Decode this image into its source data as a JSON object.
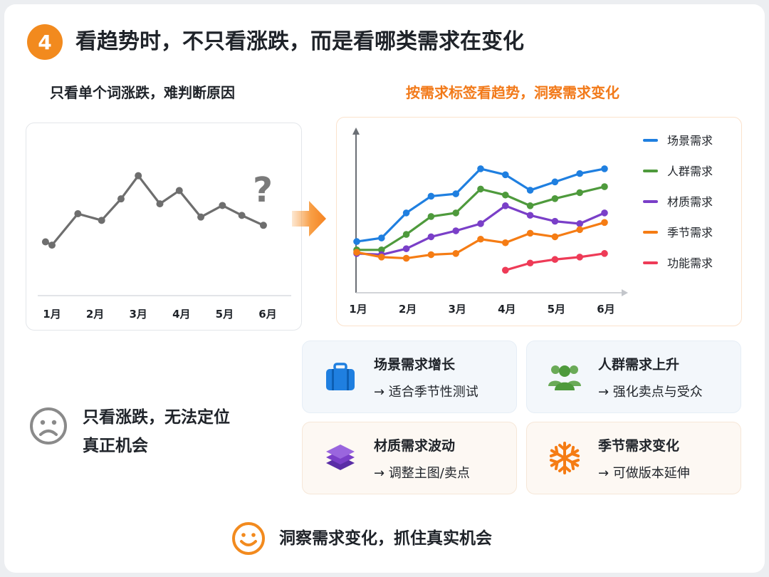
{
  "header": {
    "step_number": "4",
    "title": "看趋势时，不只看涨跌，而是看哪类需求在变化"
  },
  "left_panel": {
    "subtitle": "只看单个词涨跌，难判断原因",
    "question_mark": "?",
    "chart_data": {
      "type": "line",
      "title": "",
      "xlabel": "",
      "ylabel": "",
      "categories": [
        "1月",
        "2月",
        "3月",
        "4月",
        "5月",
        "6月"
      ],
      "series": [
        {
          "name": "",
          "color": "#6e6e6e",
          "x": [
            0.85,
            1.0,
            1.6,
            2.15,
            2.6,
            3.0,
            3.5,
            3.95,
            4.45,
            4.95,
            5.4,
            5.9
          ],
          "values": [
            36,
            34,
            53,
            49,
            62,
            76,
            59,
            67,
            51,
            58,
            52,
            46
          ]
        }
      ]
    },
    "status": {
      "line1": "只看涨跌，无法定位",
      "line2": "真正机会",
      "icon": "sad-face-icon",
      "color": "#8a8a8a"
    }
  },
  "right_panel": {
    "subtitle": "按需求标签看趋势，洞察需求变化",
    "chart_data": {
      "type": "line",
      "title": "",
      "xlabel": "",
      "ylabel": "",
      "categories": [
        "1月",
        "2月",
        "3月",
        "4月",
        "5月",
        "6月"
      ],
      "legend_position": "right",
      "series": [
        {
          "name": "场景需求",
          "color": "#1f7fe0",
          "x": [
            1,
            1.5,
            2,
            2.5,
            3,
            3.5,
            4,
            4.5,
            5,
            5.5,
            6
          ],
          "values": [
            36,
            39,
            60,
            74,
            76,
            97,
            92,
            79,
            86,
            93,
            97
          ]
        },
        {
          "name": "人群需求",
          "color": "#4e9a3c",
          "x": [
            1,
            1.5,
            2,
            2.5,
            3,
            3.5,
            4,
            4.5,
            5,
            5.5,
            6
          ],
          "values": [
            29,
            29,
            42,
            57,
            60,
            80,
            75,
            66,
            72,
            77,
            82
          ]
        },
        {
          "name": "材质需求",
          "color": "#7a3fc8",
          "x": [
            1,
            1.5,
            2,
            2.5,
            3,
            3.5,
            4,
            4.5,
            5,
            5.5,
            6
          ],
          "values": [
            26,
            25,
            30,
            40,
            45,
            51,
            66,
            58,
            53,
            51,
            60
          ]
        },
        {
          "name": "季节需求",
          "color": "#f57c14",
          "x": [
            1,
            1.5,
            2,
            2.5,
            3,
            3.5,
            4,
            4.5,
            5,
            5.5,
            6
          ],
          "values": [
            27,
            23,
            22,
            25,
            26,
            38,
            35,
            43,
            40,
            46,
            52
          ]
        },
        {
          "name": "功能需求",
          "color": "#ee3b57",
          "x": [
            4,
            4.5,
            5,
            5.5,
            6
          ],
          "values": [
            12,
            18,
            21,
            23,
            26
          ]
        }
      ]
    }
  },
  "insights": [
    {
      "title": "场景需求增长",
      "detail": "→ 适合季节性测试",
      "icon": "suitcase-icon",
      "color": "#1f7fe0"
    },
    {
      "title": "人群需求上升",
      "detail": "→ 强化卖点与受众",
      "icon": "people-group-icon",
      "color": "#4e9a3c"
    },
    {
      "title": "材质需求波动",
      "detail": "→ 调整主图/卖点",
      "icon": "layers-icon",
      "color": "#7a3fc8"
    },
    {
      "title": "季节需求变化",
      "detail": "→ 可做版本延伸",
      "icon": "snowflake-icon",
      "color": "#f57c14"
    }
  ],
  "conclusion": {
    "text": "洞察需求变化，抓住真实机会",
    "icon": "smile-face-icon",
    "color": "#f28a1e"
  }
}
